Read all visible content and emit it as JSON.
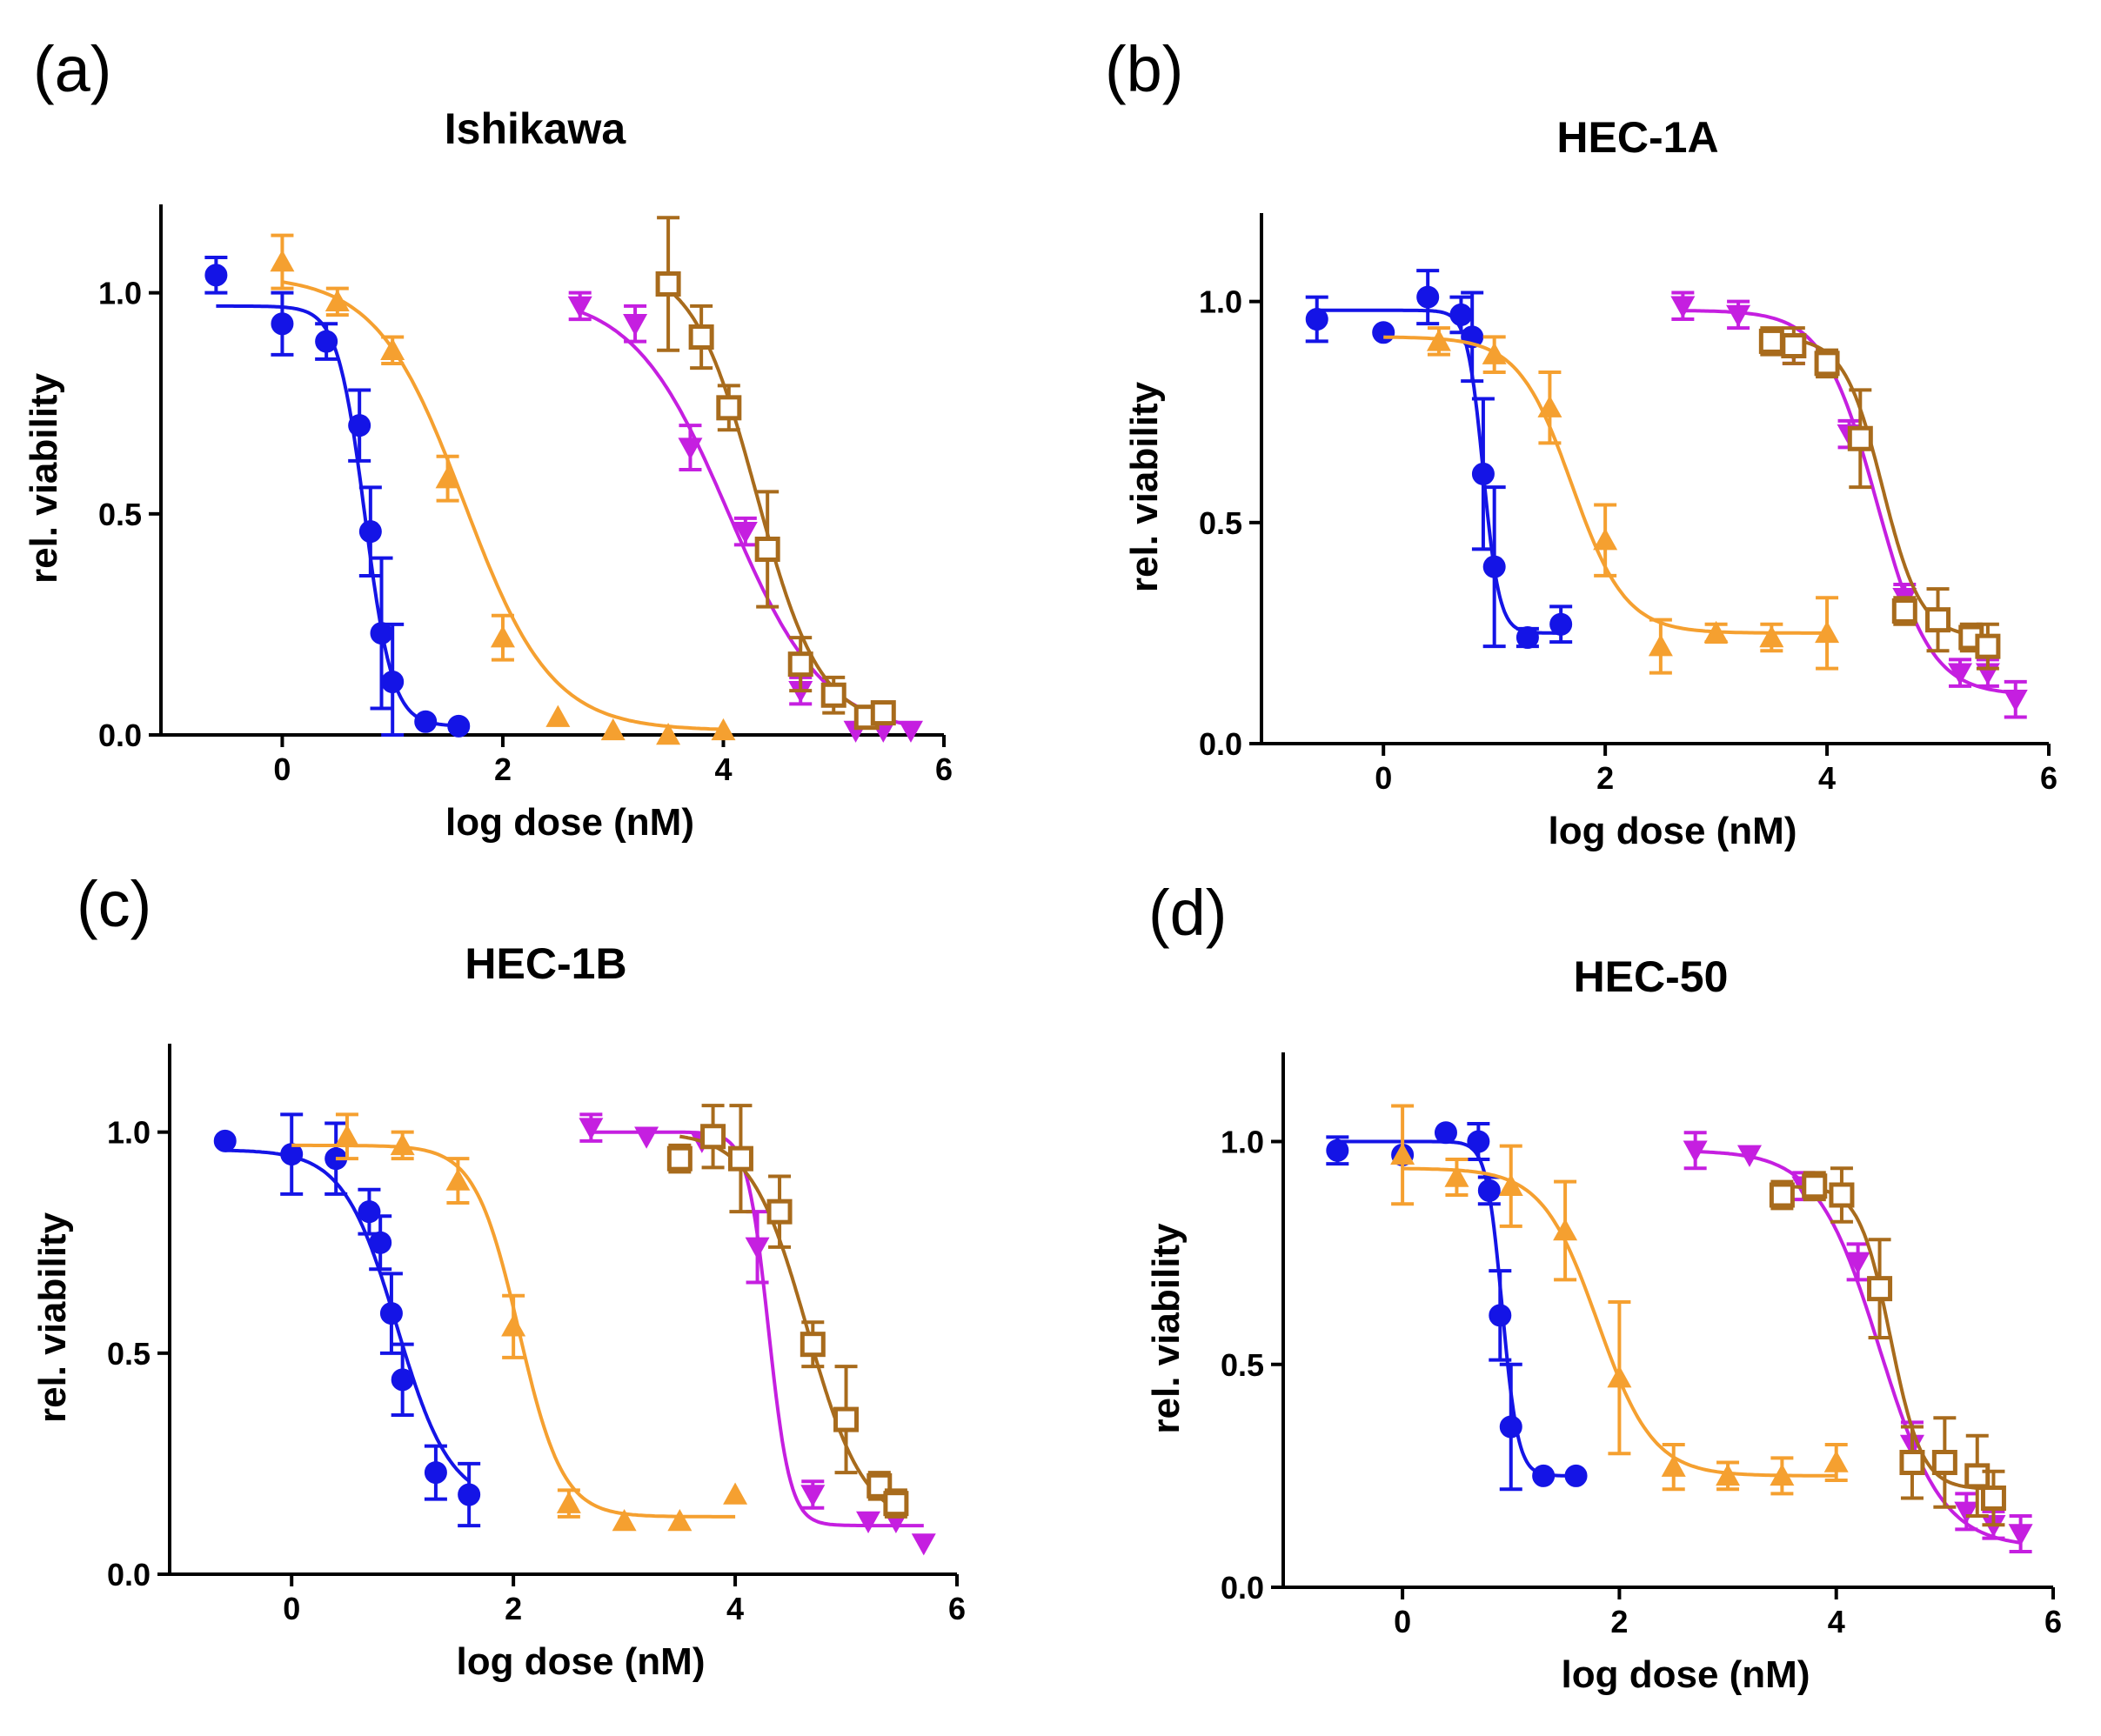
{
  "chart_data": [
    {
      "panel": "(a)",
      "type": "line",
      "title": "Ishikawa",
      "xlabel": "log dose (nM)",
      "ylabel": "rel. viability",
      "xlim": [
        -1.1,
        6
      ],
      "ylim": [
        0,
        1.2
      ],
      "xticks": [
        0,
        2,
        4,
        6
      ],
      "xtick_labels": [
        "0",
        "2",
        "4",
        "6"
      ],
      "yticks": [
        0,
        0.5,
        1.0
      ],
      "ytick_labels": [
        "0.0",
        "0.5",
        "1.0"
      ],
      "series": [
        {
          "name": "blue",
          "marker": "circle",
          "color": "#1414e6",
          "x": [
            -0.6,
            0.0,
            0.4,
            0.7,
            0.8,
            0.9,
            1.0,
            1.3,
            1.6
          ],
          "y": [
            1.04,
            0.93,
            0.89,
            0.7,
            0.46,
            0.23,
            0.12,
            0.03,
            0.02
          ],
          "err": [
            0.04,
            0.07,
            0.04,
            0.08,
            0.1,
            0.17,
            0.13,
            0.0,
            0.0
          ],
          "fit": {
            "top": 0.97,
            "bottom": 0.02,
            "logec50": 0.75,
            "hill": -3.5,
            "xmin": -0.6,
            "xmax": 1.6
          }
        },
        {
          "name": "orange",
          "marker": "triangle-up",
          "color": "#f5a030",
          "x": [
            0.0,
            0.5,
            1.0,
            1.5,
            2.0,
            2.5,
            3.0,
            3.5,
            4.0
          ],
          "y": [
            1.07,
            0.98,
            0.87,
            0.58,
            0.22,
            0.04,
            0.01,
            0.0,
            0.01
          ],
          "err": [
            0.06,
            0.03,
            0.03,
            0.05,
            0.05,
            0.0,
            0.0,
            0.0,
            0.0
          ],
          "fit": {
            "top": 1.04,
            "bottom": 0.01,
            "logec50": 1.65,
            "hill": -1.1,
            "xmin": 0.0,
            "xmax": 4.0
          }
        },
        {
          "name": "magenta",
          "marker": "triangle-down",
          "color": "#c51fe0",
          "x": [
            2.7,
            3.2,
            3.7,
            4.2,
            4.7,
            5.2,
            5.45,
            5.7
          ],
          "y": [
            0.97,
            0.93,
            0.65,
            0.46,
            0.1,
            0.01,
            0.01,
            0.01
          ],
          "err": [
            0.03,
            0.04,
            0.05,
            0.03,
            0.03,
            0.0,
            0.0,
            0.0
          ],
          "fit": {
            "top": 1.0,
            "bottom": 0.0,
            "logec50": 4.05,
            "hill": -1.0,
            "xmin": 2.7,
            "xmax": 5.7
          }
        },
        {
          "name": "brown",
          "marker": "square-open",
          "color": "#a86b1c",
          "x": [
            3.5,
            3.8,
            4.05,
            4.4,
            4.7,
            5.0,
            5.3,
            5.45
          ],
          "y": [
            1.02,
            0.9,
            0.74,
            0.42,
            0.16,
            0.09,
            0.04,
            0.05
          ],
          "err": [
            0.15,
            0.07,
            0.05,
            0.13,
            0.06,
            0.04,
            0.02,
            0.02
          ],
          "fit": {
            "top": 1.07,
            "bottom": 0.02,
            "logec50": 4.3,
            "hill": -1.5,
            "xmin": 3.5,
            "xmax": 5.45
          }
        }
      ]
    },
    {
      "panel": "(b)",
      "type": "line",
      "title": "HEC-1A",
      "xlabel": "log dose (nM)",
      "ylabel": "rel. viability",
      "xlim": [
        -1.1,
        6
      ],
      "ylim": [
        0,
        1.2
      ],
      "xticks": [
        0,
        2,
        4,
        6
      ],
      "xtick_labels": [
        "0",
        "2",
        "4",
        "6"
      ],
      "yticks": [
        0,
        0.5,
        1.0
      ],
      "ytick_labels": [
        "0.0",
        "0.5",
        "1.0"
      ],
      "series": [
        {
          "name": "blue",
          "marker": "circle",
          "color": "#1414e6",
          "x": [
            -0.6,
            0.0,
            0.4,
            0.7,
            0.8,
            0.9,
            1.0,
            1.3,
            1.6
          ],
          "y": [
            0.96,
            0.93,
            1.01,
            0.97,
            0.92,
            0.61,
            0.4,
            0.24,
            0.27
          ],
          "err": [
            0.05,
            0.0,
            0.06,
            0.04,
            0.1,
            0.17,
            0.18,
            0.02,
            0.04
          ],
          "fit": {
            "top": 0.98,
            "bottom": 0.25,
            "logec50": 0.9,
            "hill": -6.0,
            "xmin": -0.6,
            "xmax": 1.6
          }
        },
        {
          "name": "orange",
          "marker": "triangle-up",
          "color": "#f5a030",
          "x": [
            0.5,
            1.0,
            1.5,
            2.0,
            2.5,
            3.0,
            3.5,
            4.0
          ],
          "y": [
            0.91,
            0.88,
            0.76,
            0.46,
            0.22,
            0.25,
            0.24,
            0.25
          ],
          "err": [
            0.03,
            0.04,
            0.08,
            0.08,
            0.06,
            0.02,
            0.03,
            0.08
          ],
          "fit": {
            "top": 0.92,
            "bottom": 0.25,
            "logec50": 1.7,
            "hill": -1.8,
            "xmin": 0.0,
            "xmax": 4.0
          }
        },
        {
          "name": "magenta",
          "marker": "triangle-down",
          "color": "#c51fe0",
          "x": [
            2.7,
            3.2,
            3.7,
            4.2,
            4.7,
            5.2,
            5.45,
            5.7
          ],
          "y": [
            0.99,
            0.97,
            0.89,
            0.7,
            0.33,
            0.16,
            0.16,
            0.1
          ],
          "err": [
            0.03,
            0.03,
            0.03,
            0.03,
            0.03,
            0.03,
            0.03,
            0.04
          ],
          "fit": {
            "top": 0.98,
            "bottom": 0.11,
            "logec50": 4.45,
            "hill": -1.8,
            "xmin": 2.7,
            "xmax": 5.7
          }
        },
        {
          "name": "brown",
          "marker": "square-open",
          "color": "#a86b1c",
          "x": [
            3.5,
            3.7,
            4.0,
            4.3,
            4.7,
            5.0,
            5.3,
            5.45
          ],
          "y": [
            0.91,
            0.9,
            0.86,
            0.69,
            0.3,
            0.28,
            0.24,
            0.22
          ],
          "err": [
            0.03,
            0.04,
            0.03,
            0.11,
            0.03,
            0.07,
            0.03,
            0.05
          ],
          "fit": {
            "top": 0.92,
            "bottom": 0.24,
            "logec50": 4.5,
            "hill": -2.5,
            "xmin": 3.5,
            "xmax": 5.45
          }
        }
      ]
    },
    {
      "panel": "(c)",
      "type": "line",
      "title": "HEC-1B",
      "xlabel": "log dose (nM)",
      "ylabel": "rel. viability",
      "xlim": [
        -1.1,
        6
      ],
      "ylim": [
        0,
        1.2
      ],
      "xticks": [
        0,
        2,
        4,
        6
      ],
      "xtick_labels": [
        "0",
        "2",
        "4",
        "6"
      ],
      "yticks": [
        0,
        0.5,
        1.0
      ],
      "ytick_labels": [
        "0.0",
        "0.5",
        "1.0"
      ],
      "series": [
        {
          "name": "blue",
          "marker": "circle",
          "color": "#1414e6",
          "x": [
            -0.6,
            0.0,
            0.4,
            0.7,
            0.8,
            0.9,
            1.0,
            1.3,
            1.6
          ],
          "y": [
            0.98,
            0.95,
            0.94,
            0.82,
            0.75,
            0.59,
            0.44,
            0.23,
            0.18
          ],
          "err": [
            0.0,
            0.09,
            0.08,
            0.05,
            0.06,
            0.09,
            0.08,
            0.06,
            0.07
          ],
          "fit": {
            "top": 0.96,
            "bottom": 0.16,
            "logec50": 0.95,
            "hill": -1.8,
            "xmin": -0.6,
            "xmax": 1.6
          }
        },
        {
          "name": "orange",
          "marker": "triangle-up",
          "color": "#f5a030",
          "x": [
            0.5,
            1.0,
            1.5,
            2.0,
            2.5,
            3.0,
            3.5,
            4.0
          ],
          "y": [
            0.99,
            0.97,
            0.89,
            0.56,
            0.16,
            0.12,
            0.12,
            0.18
          ],
          "err": [
            0.05,
            0.03,
            0.05,
            0.07,
            0.03,
            0.0,
            0.0,
            0.0
          ],
          "fit": {
            "top": 0.97,
            "bottom": 0.13,
            "logec50": 2.05,
            "hill": -2.2,
            "xmin": 0.0,
            "xmax": 4.0
          }
        },
        {
          "name": "magenta",
          "marker": "triangle-down",
          "color": "#c51fe0",
          "x": [
            2.7,
            3.2,
            3.7,
            4.2,
            4.7,
            5.2,
            5.45,
            5.7
          ],
          "y": [
            1.01,
            0.99,
            0.98,
            0.74,
            0.18,
            0.12,
            0.12,
            0.07
          ],
          "err": [
            0.03,
            0.0,
            0.0,
            0.08,
            0.03,
            0.0,
            0.0,
            0.0
          ],
          "fit": {
            "top": 1.0,
            "bottom": 0.11,
            "logec50": 4.3,
            "hill": -4.5,
            "xmin": 2.7,
            "xmax": 5.7
          }
        },
        {
          "name": "brown",
          "marker": "square-open",
          "color": "#a86b1c",
          "x": [
            3.5,
            3.8,
            4.05,
            4.4,
            4.7,
            5.0,
            5.3,
            5.45
          ],
          "y": [
            0.94,
            0.99,
            0.94,
            0.82,
            0.52,
            0.35,
            0.2,
            0.16
          ],
          "err": [
            0.03,
            0.07,
            0.12,
            0.08,
            0.05,
            0.12,
            0.03,
            0.03
          ],
          "fit": {
            "top": 1.0,
            "bottom": 0.11,
            "logec50": 4.65,
            "hill": -1.7,
            "xmin": 3.5,
            "xmax": 5.45
          }
        }
      ]
    },
    {
      "panel": "(d)",
      "type": "line",
      "title": "HEC-50",
      "xlabel": "log dose (nM)",
      "ylabel": "rel. viability",
      "xlim": [
        -1.1,
        6
      ],
      "ylim": [
        0,
        1.2
      ],
      "xticks": [
        0,
        2,
        4,
        6
      ],
      "xtick_labels": [
        "0",
        "2",
        "4",
        "6"
      ],
      "yticks": [
        0,
        0.5,
        1.0
      ],
      "ytick_labels": [
        "0.0",
        "0.5",
        "1.0"
      ],
      "series": [
        {
          "name": "blue",
          "marker": "circle",
          "color": "#1414e6",
          "x": [
            -0.6,
            0.0,
            0.4,
            0.7,
            0.8,
            0.9,
            1.0,
            1.3,
            1.6
          ],
          "y": [
            0.98,
            0.97,
            1.02,
            1.0,
            0.89,
            0.61,
            0.36,
            0.25,
            0.25
          ],
          "err": [
            0.03,
            0.0,
            0.0,
            0.04,
            0.03,
            0.1,
            0.14,
            0.0,
            0.0
          ],
          "fit": {
            "top": 1.0,
            "bottom": 0.25,
            "logec50": 0.92,
            "hill": -6.0,
            "xmin": -0.6,
            "xmax": 1.6
          }
        },
        {
          "name": "orange",
          "marker": "triangle-up",
          "color": "#f5a030",
          "x": [
            0.0,
            0.5,
            1.0,
            1.5,
            2.0,
            2.5,
            3.0,
            3.5,
            4.0
          ],
          "y": [
            0.97,
            0.92,
            0.9,
            0.8,
            0.47,
            0.27,
            0.25,
            0.25,
            0.28
          ],
          "err": [
            0.11,
            0.04,
            0.09,
            0.11,
            0.17,
            0.05,
            0.03,
            0.04,
            0.04
          ],
          "fit": {
            "top": 0.94,
            "bottom": 0.25,
            "logec50": 1.8,
            "hill": -1.7,
            "xmin": 0.0,
            "xmax": 4.0
          }
        },
        {
          "name": "magenta",
          "marker": "triangle-down",
          "color": "#c51fe0",
          "x": [
            2.7,
            3.2,
            3.7,
            4.2,
            4.7,
            5.2,
            5.45,
            5.7
          ],
          "y": [
            0.98,
            0.97,
            0.9,
            0.73,
            0.32,
            0.17,
            0.14,
            0.12
          ],
          "err": [
            0.04,
            0.0,
            0.03,
            0.04,
            0.05,
            0.04,
            0.03,
            0.04
          ],
          "fit": {
            "top": 0.98,
            "bottom": 0.09,
            "logec50": 4.4,
            "hill": -1.5,
            "xmin": 2.7,
            "xmax": 5.7
          }
        },
        {
          "name": "brown",
          "marker": "square-open",
          "color": "#a86b1c",
          "x": [
            3.5,
            3.8,
            4.05,
            4.4,
            4.7,
            5.0,
            5.3,
            5.45
          ],
          "y": [
            0.88,
            0.9,
            0.88,
            0.67,
            0.28,
            0.28,
            0.25,
            0.2
          ],
          "err": [
            0.03,
            0.03,
            0.06,
            0.11,
            0.08,
            0.1,
            0.09,
            0.06
          ],
          "fit": {
            "top": 0.9,
            "bottom": 0.22,
            "logec50": 4.5,
            "hill": -3.0,
            "xmin": 3.5,
            "xmax": 5.45
          }
        }
      ]
    }
  ]
}
